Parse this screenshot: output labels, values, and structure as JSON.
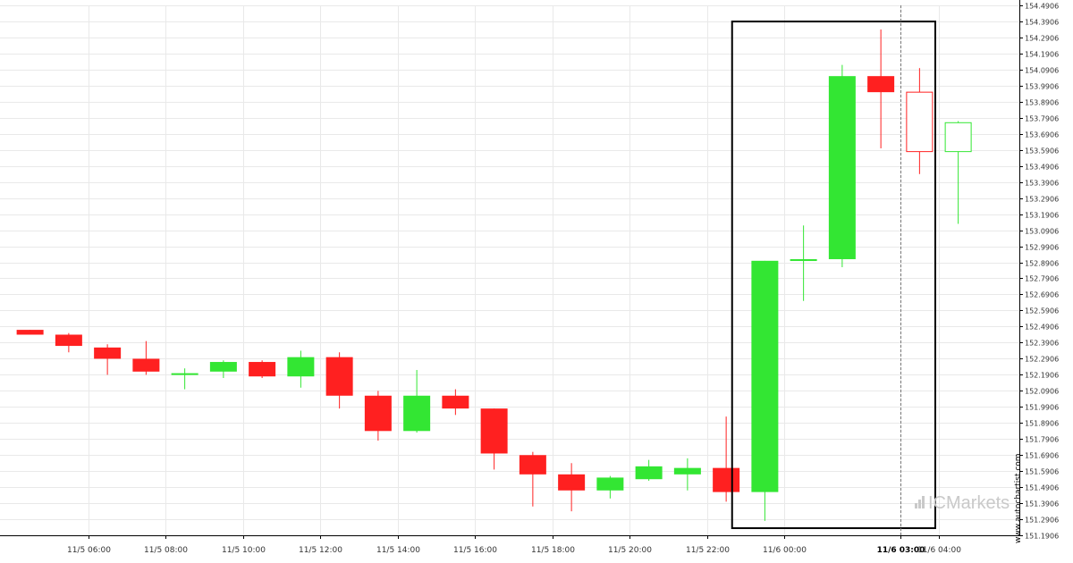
{
  "chart_data": {
    "type": "candlestick",
    "title": "",
    "xlabel": "",
    "ylabel": "",
    "ylim": [
      151.1906,
      154.4906
    ],
    "y_ticks": [
      "154.4906",
      "154.3906",
      "154.2906",
      "154.1906",
      "154.0906",
      "153.9906",
      "153.8906",
      "153.7906",
      "153.6906",
      "153.5906",
      "153.4906",
      "153.3906",
      "153.2906",
      "153.1906",
      "153.0906",
      "152.9906",
      "152.8906",
      "152.7906",
      "152.6906",
      "152.5906",
      "152.4906",
      "152.3906",
      "152.2906",
      "152.1906",
      "152.0906",
      "151.9906",
      "151.8906",
      "151.7906",
      "151.6906",
      "151.5906",
      "151.4906",
      "151.3906",
      "151.2906",
      "151.1906"
    ],
    "x_ticks": [
      {
        "label": "11/5 06:00",
        "hour": 6,
        "highlight": false
      },
      {
        "label": "11/5 08:00",
        "hour": 8,
        "highlight": false
      },
      {
        "label": "11/5 10:00",
        "hour": 10,
        "highlight": false
      },
      {
        "label": "11/5 12:00",
        "hour": 12,
        "highlight": false
      },
      {
        "label": "11/5 14:00",
        "hour": 14,
        "highlight": false
      },
      {
        "label": "11/5 16:00",
        "hour": 16,
        "highlight": false
      },
      {
        "label": "11/5 18:00",
        "hour": 18,
        "highlight": false
      },
      {
        "label": "11/5 20:00",
        "hour": 20,
        "highlight": false
      },
      {
        "label": "11/5 22:00",
        "hour": 22,
        "highlight": false
      },
      {
        "label": "11/6 00:00",
        "hour": 24,
        "highlight": false
      },
      {
        "label": "11/6 03:00",
        "hour": 27,
        "highlight": true
      },
      {
        "label": "11/6 04:00",
        "hour": 28,
        "highlight": false
      }
    ],
    "grid": true,
    "colors": {
      "up": "#33e633",
      "down": "#ff2020",
      "box": "#000000",
      "grid": "#e9e9e9"
    },
    "candles": [
      {
        "time": "11/5 04:30",
        "hour": 4.5,
        "open": 152.47,
        "high": 152.47,
        "low": 152.44,
        "close": 152.44,
        "style": "filled"
      },
      {
        "time": "11/5 05:30",
        "hour": 5.5,
        "open": 152.44,
        "high": 152.45,
        "low": 152.33,
        "close": 152.37,
        "style": "filled"
      },
      {
        "time": "11/5 06:30",
        "hour": 6.5,
        "open": 152.36,
        "high": 152.38,
        "low": 152.19,
        "close": 152.29,
        "style": "filled"
      },
      {
        "time": "11/5 07:30",
        "hour": 7.5,
        "open": 152.29,
        "high": 152.4,
        "low": 152.19,
        "close": 152.21,
        "style": "filled"
      },
      {
        "time": "11/5 08:30",
        "hour": 8.5,
        "open": 152.2,
        "high": 152.23,
        "low": 152.1,
        "close": 152.2,
        "style": "filled"
      },
      {
        "time": "11/5 09:30",
        "hour": 9.5,
        "open": 152.21,
        "high": 152.28,
        "low": 152.17,
        "close": 152.27,
        "style": "filled"
      },
      {
        "time": "11/5 10:30",
        "hour": 10.5,
        "open": 152.27,
        "high": 152.28,
        "low": 152.17,
        "close": 152.18,
        "style": "filled"
      },
      {
        "time": "11/5 11:30",
        "hour": 11.5,
        "open": 152.18,
        "high": 152.34,
        "low": 152.11,
        "close": 152.3,
        "style": "filled"
      },
      {
        "time": "11/5 12:30",
        "hour": 12.5,
        "open": 152.3,
        "high": 152.33,
        "low": 151.98,
        "close": 152.06,
        "style": "filled"
      },
      {
        "time": "11/5 13:30",
        "hour": 13.5,
        "open": 152.06,
        "high": 152.09,
        "low": 151.78,
        "close": 151.84,
        "style": "filled"
      },
      {
        "time": "11/5 14:30",
        "hour": 14.5,
        "open": 151.84,
        "high": 152.22,
        "low": 151.83,
        "close": 152.06,
        "style": "filled"
      },
      {
        "time": "11/5 15:30",
        "hour": 15.5,
        "open": 152.06,
        "high": 152.1,
        "low": 151.94,
        "close": 151.98,
        "style": "filled"
      },
      {
        "time": "11/5 16:30",
        "hour": 16.5,
        "open": 151.98,
        "high": 151.98,
        "low": 151.6,
        "close": 151.7,
        "style": "filled"
      },
      {
        "time": "11/5 17:30",
        "hour": 17.5,
        "open": 151.69,
        "high": 151.71,
        "low": 151.37,
        "close": 151.57,
        "style": "filled"
      },
      {
        "time": "11/5 18:30",
        "hour": 18.5,
        "open": 151.57,
        "high": 151.64,
        "low": 151.34,
        "close": 151.47,
        "style": "filled"
      },
      {
        "time": "11/5 19:30",
        "hour": 19.5,
        "open": 151.47,
        "high": 151.56,
        "low": 151.42,
        "close": 151.55,
        "style": "filled"
      },
      {
        "time": "11/5 20:30",
        "hour": 20.5,
        "open": 151.54,
        "high": 151.66,
        "low": 151.53,
        "close": 151.62,
        "style": "filled"
      },
      {
        "time": "11/5 21:30",
        "hour": 21.5,
        "open": 151.57,
        "high": 151.67,
        "low": 151.47,
        "close": 151.61,
        "style": "filled"
      },
      {
        "time": "11/5 22:30",
        "hour": 22.5,
        "open": 151.61,
        "high": 151.93,
        "low": 151.4,
        "close": 151.46,
        "style": "filled"
      },
      {
        "time": "11/5 23:30",
        "hour": 23.5,
        "open": 151.46,
        "high": 152.9,
        "low": 151.28,
        "close": 152.9,
        "style": "filled"
      },
      {
        "time": "11/6 00:30",
        "hour": 24.5,
        "open": 152.9,
        "high": 153.12,
        "low": 152.65,
        "close": 152.91,
        "style": "filled"
      },
      {
        "time": "11/6 01:30",
        "hour": 25.5,
        "open": 152.91,
        "high": 154.12,
        "low": 152.86,
        "close": 154.05,
        "style": "filled"
      },
      {
        "time": "11/6 02:30",
        "hour": 26.5,
        "open": 154.05,
        "high": 154.34,
        "low": 153.6,
        "close": 153.95,
        "style": "filled"
      },
      {
        "time": "11/6 03:30",
        "hour": 27.5,
        "open": 153.95,
        "high": 154.1,
        "low": 153.44,
        "close": 153.58,
        "style": "hollow"
      },
      {
        "time": "11/6 04:30",
        "hour": 28.5,
        "open": 153.58,
        "high": 153.77,
        "low": 153.13,
        "close": 153.76,
        "style": "hollow"
      }
    ],
    "highlight_box": {
      "start_hour": 23,
      "end_hour": 28,
      "top": 154.39,
      "bottom": 151.235
    },
    "current_time_marker_hour": 27
  },
  "watermark": {
    "ic": "IC",
    "markets": "Markets"
  },
  "credit": "www.autochartist.com"
}
